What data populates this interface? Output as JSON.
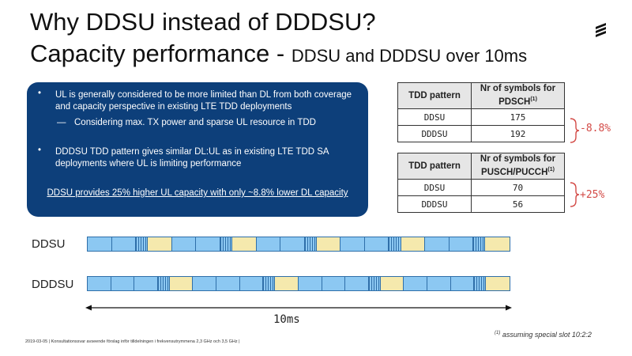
{
  "slide": {
    "title_line1": "Why DDSU instead of DDDSU?",
    "title_line2_main": "Capacity performance - ",
    "title_line2_sub": "DDSU and DDDSU over 10ms"
  },
  "summary_box": {
    "bullet1": "UL is generally considered to be more limited than DL from both coverage and capacity perspective in existing LTE TDD deployments",
    "sub_bullet1": "Considering max. TX power and sparse UL resource in TDD",
    "bullet2": "DDDSU TDD pattern gives similar DL:UL as in existing LTE TDD SA deployments where UL is limiting performance",
    "conclusion": "DDSU provides 25% higher UL capacity with only ~8.8% lower DL capacity",
    "bullet_glyph": "•",
    "dash_glyph": "—"
  },
  "tables": {
    "pdsch": {
      "header_col1": "TDD pattern",
      "header_col2_line1": "Nr of symbols for",
      "header_col2_line2": "PDSCH",
      "header_sup": "(1)",
      "rows": [
        {
          "pattern": "DDSU",
          "value": "175"
        },
        {
          "pattern": "DDDSU",
          "value": "192"
        }
      ],
      "delta": "-8.8%"
    },
    "pusch": {
      "header_col1": "TDD pattern",
      "header_col2_line1": "Nr of symbols for",
      "header_col2_line2": "PUSCH/PUCCH",
      "header_sup": "(1)",
      "rows": [
        {
          "pattern": "DDSU",
          "value": "70"
        },
        {
          "pattern": "DDDSU",
          "value": "56"
        }
      ],
      "delta": "+25%"
    }
  },
  "diagram": {
    "ddsu_label": "DDSU",
    "dddsu_label": "DDDSU",
    "span_label": "10ms",
    "ddsu_slots": [
      "D",
      "D",
      "S",
      "U",
      "D",
      "D",
      "S",
      "U",
      "D",
      "D",
      "S",
      "U",
      "D",
      "D",
      "S",
      "U",
      "D",
      "D",
      "S",
      "U"
    ],
    "dddsu_slots": [
      "D",
      "D",
      "D",
      "S",
      "U",
      "D",
      "D",
      "D",
      "S",
      "U",
      "D",
      "D",
      "D",
      "S",
      "U",
      "D",
      "D",
      "D",
      "S",
      "U"
    ]
  },
  "footer": {
    "text": "2019-03-05  |  Konsultationssvar  avseende förslag inför tilldelningen  i frekvensutrymmena 2,3 GHz och 3,5 GHz  |",
    "footnote_sup": "(1)",
    "footnote": " assuming special slot 10:2:2"
  },
  "colors": {
    "box_blue": "#0d3f7a",
    "dl_slot": "#8cc8f2",
    "ul_slot": "#f5e9ad",
    "delta_red": "#d34a46"
  },
  "icons": {
    "logo": "ericsson-logo-icon",
    "brace": "curly-brace-icon",
    "arrow": "double-arrow-icon"
  }
}
